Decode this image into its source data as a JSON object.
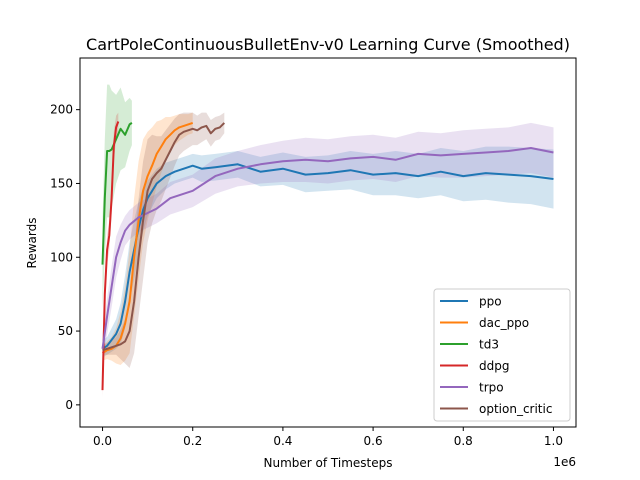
{
  "chart_data": {
    "type": "line",
    "title": "CartPoleContinuousBulletEnv-v0 Learning Curve (Smoothed)",
    "xlabel": "Number of Timesteps",
    "ylabel": "Rewards",
    "x_multiplier_label": "1e6",
    "xlim": [
      -0.05,
      1.05
    ],
    "ylim": [
      -15,
      235
    ],
    "x_ticks": [
      0.0,
      0.2,
      0.4,
      0.6,
      0.8,
      1.0
    ],
    "x_tick_labels": [
      "0.0",
      "0.2",
      "0.4",
      "0.6",
      "0.8",
      "1.0"
    ],
    "y_ticks": [
      0,
      50,
      100,
      150,
      200
    ],
    "y_tick_labels": [
      "0",
      "50",
      "100",
      "150",
      "200"
    ],
    "grid": false,
    "legend_position": "lower-right",
    "series": [
      {
        "name": "ppo",
        "color": "#1f77b4",
        "x": [
          0.0,
          0.01,
          0.02,
          0.03,
          0.04,
          0.05,
          0.06,
          0.07,
          0.08,
          0.09,
          0.1,
          0.12,
          0.14,
          0.16,
          0.18,
          0.2,
          0.22,
          0.25,
          0.3,
          0.35,
          0.4,
          0.45,
          0.5,
          0.55,
          0.6,
          0.65,
          0.7,
          0.75,
          0.8,
          0.85,
          0.9,
          0.95,
          1.0
        ],
        "y": [
          38,
          40,
          44,
          48,
          55,
          70,
          90,
          105,
          120,
          132,
          140,
          150,
          155,
          158,
          160,
          162,
          160,
          161,
          163,
          158,
          160,
          156,
          157,
          159,
          156,
          157,
          155,
          158,
          155,
          157,
          156,
          155,
          153
        ],
        "band": [
          6,
          6,
          8,
          10,
          14,
          18,
          20,
          20,
          18,
          15,
          12,
          10,
          9,
          8,
          8,
          8,
          9,
          9,
          9,
          10,
          11,
          12,
          12,
          13,
          14,
          15,
          15,
          16,
          17,
          18,
          19,
          19,
          20
        ]
      },
      {
        "name": "dac_ppo",
        "color": "#ff7f0e",
        "x": [
          0.0,
          0.01,
          0.02,
          0.03,
          0.04,
          0.05,
          0.06,
          0.07,
          0.08,
          0.09,
          0.1,
          0.11,
          0.12,
          0.13,
          0.14,
          0.15,
          0.16,
          0.17,
          0.18,
          0.19,
          0.2
        ],
        "y": [
          35,
          37,
          38,
          40,
          45,
          55,
          70,
          100,
          125,
          145,
          155,
          162,
          170,
          175,
          180,
          183,
          186,
          188,
          189,
          190,
          191
        ],
        "band": [
          5,
          6,
          8,
          12,
          18,
          25,
          35,
          40,
          40,
          35,
          30,
          26,
          22,
          18,
          15,
          12,
          10,
          9,
          8,
          7,
          7
        ]
      },
      {
        "name": "td3",
        "color": "#2ca02c",
        "x": [
          0.0,
          0.005,
          0.01,
          0.015,
          0.02,
          0.03,
          0.04,
          0.05,
          0.06,
          0.065
        ],
        "y": [
          95,
          140,
          172,
          172,
          173,
          180,
          187,
          183,
          190,
          191
        ],
        "band": [
          30,
          40,
          45,
          45,
          40,
          30,
          28,
          22,
          18,
          15
        ]
      },
      {
        "name": "ddpg",
        "color": "#d62728",
        "x": [
          0.0,
          0.005,
          0.01,
          0.015,
          0.02,
          0.025,
          0.03,
          0.035
        ],
        "y": [
          10,
          75,
          105,
          115,
          140,
          175,
          188,
          192
        ],
        "band": [
          5,
          10,
          10,
          10,
          10,
          10,
          8,
          6
        ]
      },
      {
        "name": "trpo",
        "color": "#9467bd",
        "x": [
          0.0,
          0.01,
          0.02,
          0.03,
          0.04,
          0.05,
          0.06,
          0.08,
          0.1,
          0.12,
          0.15,
          0.2,
          0.25,
          0.3,
          0.35,
          0.4,
          0.45,
          0.5,
          0.55,
          0.6,
          0.65,
          0.7,
          0.75,
          0.8,
          0.85,
          0.9,
          0.95,
          1.0
        ],
        "y": [
          38,
          60,
          80,
          100,
          110,
          118,
          122,
          127,
          130,
          133,
          140,
          145,
          155,
          160,
          163,
          165,
          166,
          165,
          167,
          168,
          166,
          170,
          169,
          170,
          171,
          172,
          174,
          171
        ],
        "band": [
          10,
          12,
          14,
          14,
          12,
          10,
          10,
          10,
          10,
          10,
          11,
          11,
          12,
          12,
          13,
          14,
          15,
          15,
          15,
          15,
          15,
          15,
          15,
          16,
          16,
          16,
          17,
          17
        ]
      },
      {
        "name": "option_critic",
        "color": "#8c564b",
        "x": [
          0.0,
          0.01,
          0.02,
          0.03,
          0.04,
          0.05,
          0.06,
          0.07,
          0.08,
          0.09,
          0.1,
          0.11,
          0.12,
          0.13,
          0.14,
          0.15,
          0.16,
          0.17,
          0.18,
          0.19,
          0.2,
          0.21,
          0.22,
          0.23,
          0.24,
          0.25,
          0.26,
          0.27
        ],
        "y": [
          37,
          38,
          39,
          40,
          41,
          43,
          50,
          70,
          100,
          125,
          145,
          153,
          157,
          160,
          166,
          172,
          178,
          183,
          185,
          186,
          187,
          186,
          188,
          189,
          184,
          187,
          188,
          191
        ],
        "band": [
          3,
          4,
          5,
          6,
          10,
          15,
          25,
          35,
          40,
          40,
          35,
          30,
          25,
          22,
          20,
          18,
          16,
          14,
          13,
          12,
          11,
          10,
          10,
          9,
          9,
          8,
          8,
          7
        ]
      }
    ]
  }
}
